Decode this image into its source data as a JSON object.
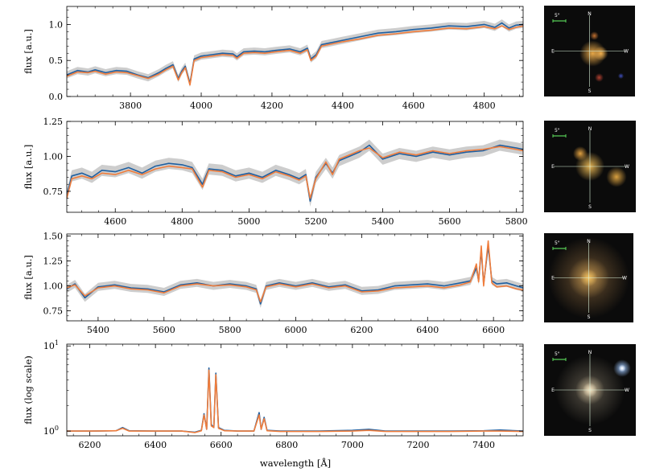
{
  "figure": {
    "xlabel": "wavelength [Å]"
  },
  "colors": {
    "observed": "#1f5fa0",
    "model": "#f07d3c",
    "band": "#c8c8c8",
    "thumb_bg": "#0b0b0b",
    "crosshair": "#d8f0d8",
    "scalebar": "#5ad45a"
  },
  "thumbnail_labels": {
    "scale": "5\"",
    "north": "N",
    "south": "S",
    "east": "E",
    "west": "W"
  },
  "chart_data": [
    {
      "type": "line",
      "ylabel": "flux [a.u.]",
      "xlim": [
        3620,
        4910
      ],
      "ylim": [
        0.0,
        1.25
      ],
      "yscale": "linear",
      "xticks": [
        3800,
        4000,
        4200,
        4400,
        4600,
        4800
      ],
      "yticks": [
        {
          "value": 0.0,
          "label": "0.0"
        },
        {
          "value": 0.5,
          "label": "0.5"
        },
        {
          "value": 1.0,
          "label": "1.0"
        }
      ],
      "series": [
        {
          "role": "observed",
          "color": "#1f5fa0",
          "band": 0.05,
          "x": [
            3620,
            3650,
            3680,
            3700,
            3730,
            3760,
            3790,
            3820,
            3850,
            3880,
            3900,
            3920,
            3935,
            3945,
            3955,
            3968,
            3980,
            4000,
            4030,
            4060,
            4090,
            4101,
            4120,
            4150,
            4180,
            4210,
            4250,
            4280,
            4300,
            4310,
            4325,
            4340,
            4360,
            4400,
            4450,
            4500,
            4550,
            4600,
            4650,
            4700,
            4750,
            4800,
            4830,
            4850,
            4870,
            4890,
            4910
          ],
          "y": [
            0.3,
            0.36,
            0.34,
            0.37,
            0.33,
            0.36,
            0.35,
            0.3,
            0.26,
            0.33,
            0.39,
            0.44,
            0.25,
            0.35,
            0.42,
            0.18,
            0.52,
            0.56,
            0.58,
            0.6,
            0.59,
            0.55,
            0.62,
            0.63,
            0.62,
            0.64,
            0.66,
            0.62,
            0.67,
            0.52,
            0.58,
            0.72,
            0.74,
            0.78,
            0.83,
            0.88,
            0.9,
            0.93,
            0.95,
            0.98,
            0.97,
            1.0,
            0.96,
            1.02,
            0.95,
            0.99,
            1.0
          ]
        },
        {
          "role": "model",
          "color": "#f07d3c",
          "band": 0,
          "x": [
            3620,
            3650,
            3680,
            3700,
            3730,
            3760,
            3790,
            3820,
            3850,
            3880,
            3900,
            3920,
            3935,
            3945,
            3955,
            3968,
            3980,
            4000,
            4030,
            4060,
            4090,
            4101,
            4120,
            4150,
            4180,
            4210,
            4250,
            4280,
            4300,
            4310,
            4325,
            4340,
            4360,
            4400,
            4450,
            4500,
            4550,
            4600,
            4650,
            4700,
            4750,
            4800,
            4830,
            4850,
            4870,
            4890,
            4910
          ],
          "y": [
            0.28,
            0.34,
            0.33,
            0.35,
            0.31,
            0.34,
            0.33,
            0.29,
            0.25,
            0.31,
            0.37,
            0.42,
            0.23,
            0.33,
            0.4,
            0.16,
            0.5,
            0.54,
            0.56,
            0.58,
            0.57,
            0.53,
            0.6,
            0.61,
            0.6,
            0.62,
            0.64,
            0.6,
            0.65,
            0.5,
            0.56,
            0.7,
            0.72,
            0.76,
            0.8,
            0.85,
            0.87,
            0.9,
            0.92,
            0.95,
            0.94,
            0.97,
            0.94,
            0.98,
            0.93,
            0.96,
            0.98
          ]
        }
      ]
    },
    {
      "type": "line",
      "ylabel": "flux [a.u.]",
      "xlim": [
        4455,
        5820
      ],
      "ylim": [
        0.6,
        1.25
      ],
      "yscale": "linear",
      "xticks": [
        4600,
        4800,
        5000,
        5200,
        5400,
        5600,
        5800
      ],
      "yticks": [
        {
          "value": 0.75,
          "label": "0.75"
        },
        {
          "value": 1.0,
          "label": "1.00"
        },
        {
          "value": 1.25,
          "label": "1.25"
        }
      ],
      "series": [
        {
          "role": "observed",
          "color": "#1f5fa0",
          "band": 0.04,
          "x": [
            4455,
            4470,
            4500,
            4530,
            4560,
            4600,
            4640,
            4680,
            4720,
            4760,
            4800,
            4830,
            4861,
            4880,
            4920,
            4960,
            5000,
            5040,
            5080,
            5120,
            5150,
            5170,
            5183,
            5200,
            5230,
            5250,
            5270,
            5300,
            5330,
            5360,
            5400,
            5450,
            5500,
            5550,
            5600,
            5650,
            5700,
            5750,
            5800,
            5820
          ],
          "y": [
            0.72,
            0.86,
            0.88,
            0.85,
            0.9,
            0.89,
            0.92,
            0.88,
            0.93,
            0.95,
            0.94,
            0.92,
            0.8,
            0.91,
            0.9,
            0.86,
            0.88,
            0.85,
            0.9,
            0.87,
            0.84,
            0.87,
            0.68,
            0.85,
            0.95,
            0.88,
            0.97,
            1.0,
            1.03,
            1.08,
            0.98,
            1.02,
            1.0,
            1.03,
            1.01,
            1.03,
            1.04,
            1.08,
            1.06,
            1.05
          ]
        },
        {
          "role": "model",
          "color": "#f07d3c",
          "band": 0,
          "x": [
            4455,
            4470,
            4500,
            4530,
            4560,
            4600,
            4640,
            4680,
            4720,
            4760,
            4800,
            4830,
            4861,
            4880,
            4920,
            4960,
            5000,
            5040,
            5080,
            5120,
            5150,
            5170,
            5183,
            5200,
            5230,
            5250,
            5270,
            5300,
            5330,
            5360,
            5400,
            5450,
            5500,
            5550,
            5600,
            5650,
            5700,
            5750,
            5800,
            5820
          ],
          "y": [
            0.7,
            0.84,
            0.86,
            0.84,
            0.88,
            0.87,
            0.9,
            0.87,
            0.91,
            0.93,
            0.92,
            0.91,
            0.78,
            0.9,
            0.89,
            0.85,
            0.87,
            0.84,
            0.89,
            0.86,
            0.83,
            0.86,
            0.7,
            0.84,
            0.96,
            0.87,
            0.98,
            1.01,
            1.04,
            1.06,
            0.99,
            1.03,
            1.01,
            1.04,
            1.02,
            1.04,
            1.05,
            1.07,
            1.05,
            1.04
          ]
        }
      ]
    },
    {
      "type": "line",
      "ylabel": "flux [a.u.]",
      "xlim": [
        5305,
        6690
      ],
      "ylim": [
        0.65,
        1.52
      ],
      "yscale": "linear",
      "xticks": [
        5400,
        5600,
        5800,
        6000,
        6200,
        6400,
        6600
      ],
      "yticks": [
        {
          "value": 0.75,
          "label": "0.75"
        },
        {
          "value": 1.0,
          "label": "1.00"
        },
        {
          "value": 1.25,
          "label": "1.25"
        },
        {
          "value": 1.5,
          "label": "1.50"
        }
      ],
      "series": [
        {
          "role": "observed",
          "color": "#1f5fa0",
          "band": 0.04,
          "x": [
            5305,
            5330,
            5360,
            5400,
            5450,
            5500,
            5550,
            5600,
            5650,
            5700,
            5750,
            5800,
            5850,
            5880,
            5893,
            5910,
            5950,
            6000,
            6050,
            6100,
            6150,
            6200,
            6250,
            6300,
            6350,
            6400,
            6450,
            6500,
            6530,
            6548,
            6555,
            6563,
            6570,
            6584,
            6595,
            6610,
            6640,
            6670,
            6690
          ],
          "y": [
            0.97,
            1.02,
            0.88,
            0.99,
            1.01,
            0.98,
            0.97,
            0.94,
            1.01,
            1.03,
            1.0,
            1.02,
            1.0,
            0.97,
            0.82,
            1.0,
            1.03,
            1.0,
            1.03,
            0.99,
            1.01,
            0.95,
            0.96,
            1.0,
            1.01,
            1.02,
            1.0,
            1.03,
            1.05,
            1.18,
            1.05,
            1.36,
            1.02,
            1.4,
            1.05,
            1.02,
            1.03,
            1.0,
            0.98
          ]
        },
        {
          "role": "model",
          "color": "#f07d3c",
          "band": 0,
          "x": [
            5305,
            5330,
            5360,
            5400,
            5450,
            5500,
            5550,
            5600,
            5650,
            5700,
            5750,
            5800,
            5850,
            5880,
            5893,
            5910,
            5950,
            6000,
            6050,
            6100,
            6150,
            6200,
            6250,
            6300,
            6350,
            6400,
            6450,
            6500,
            6530,
            6548,
            6555,
            6563,
            6570,
            6584,
            6595,
            6610,
            6640,
            6670,
            6690
          ],
          "y": [
            0.98,
            1.01,
            0.9,
            0.98,
            1.0,
            0.97,
            0.96,
            0.93,
            1.0,
            1.02,
            1.0,
            1.01,
            0.99,
            0.96,
            0.84,
            0.99,
            1.02,
            0.99,
            1.02,
            0.98,
            1.0,
            0.94,
            0.95,
            0.98,
            0.99,
            1.0,
            0.98,
            1.01,
            1.04,
            1.22,
            1.04,
            1.4,
            1.0,
            1.45,
            1.03,
            0.99,
            1.0,
            0.97,
            0.96
          ]
        }
      ]
    },
    {
      "type": "line",
      "ylabel": "flux (log scale)",
      "xlim": [
        6130,
        7520
      ],
      "ylim": [
        0.88,
        10.5
      ],
      "yscale": "log",
      "xticks": [
        6200,
        6400,
        6600,
        6800,
        7000,
        7200,
        7400
      ],
      "yticks": [
        {
          "value": 1,
          "label": "10",
          "exp": "0"
        },
        {
          "value": 10,
          "label": "10",
          "exp": "1"
        }
      ],
      "series": [
        {
          "role": "observed",
          "color": "#1f5fa0",
          "band": 0,
          "x": [
            6130,
            6200,
            6280,
            6300,
            6320,
            6400,
            6480,
            6520,
            6540,
            6548,
            6556,
            6563,
            6570,
            6578,
            6584,
            6592,
            6610,
            6650,
            6700,
            6716,
            6722,
            6731,
            6740,
            6780,
            6900,
            7000,
            7050,
            7100,
            7200,
            7300,
            7400,
            7450,
            7520
          ],
          "y": [
            1.0,
            1.0,
            1.01,
            1.1,
            1.01,
            1.0,
            1.0,
            0.97,
            1.02,
            1.6,
            1.05,
            5.5,
            1.2,
            1.1,
            4.8,
            1.1,
            1.02,
            1.0,
            1.0,
            1.65,
            1.05,
            1.45,
            1.02,
            1.0,
            1.0,
            1.02,
            1.05,
            1.0,
            1.0,
            1.0,
            1.01,
            1.03,
            1.0
          ]
        },
        {
          "role": "model",
          "color": "#f07d3c",
          "band": 0,
          "x": [
            6130,
            6200,
            6280,
            6300,
            6320,
            6400,
            6480,
            6520,
            6540,
            6548,
            6556,
            6563,
            6570,
            6578,
            6584,
            6592,
            6610,
            6650,
            6700,
            6716,
            6722,
            6731,
            6740,
            6780,
            6900,
            7000,
            7050,
            7100,
            7200,
            7300,
            7400,
            7450,
            7520
          ],
          "y": [
            1.0,
            1.0,
            1.01,
            1.08,
            1.0,
            1.0,
            1.0,
            0.96,
            1.01,
            1.55,
            1.05,
            5.2,
            1.15,
            1.1,
            4.6,
            1.08,
            1.01,
            1.0,
            1.0,
            1.55,
            1.05,
            1.4,
            1.01,
            0.99,
            0.99,
            1.0,
            1.02,
            0.99,
            0.99,
            0.99,
            1.0,
            1.0,
            0.99
          ]
        }
      ]
    }
  ]
}
